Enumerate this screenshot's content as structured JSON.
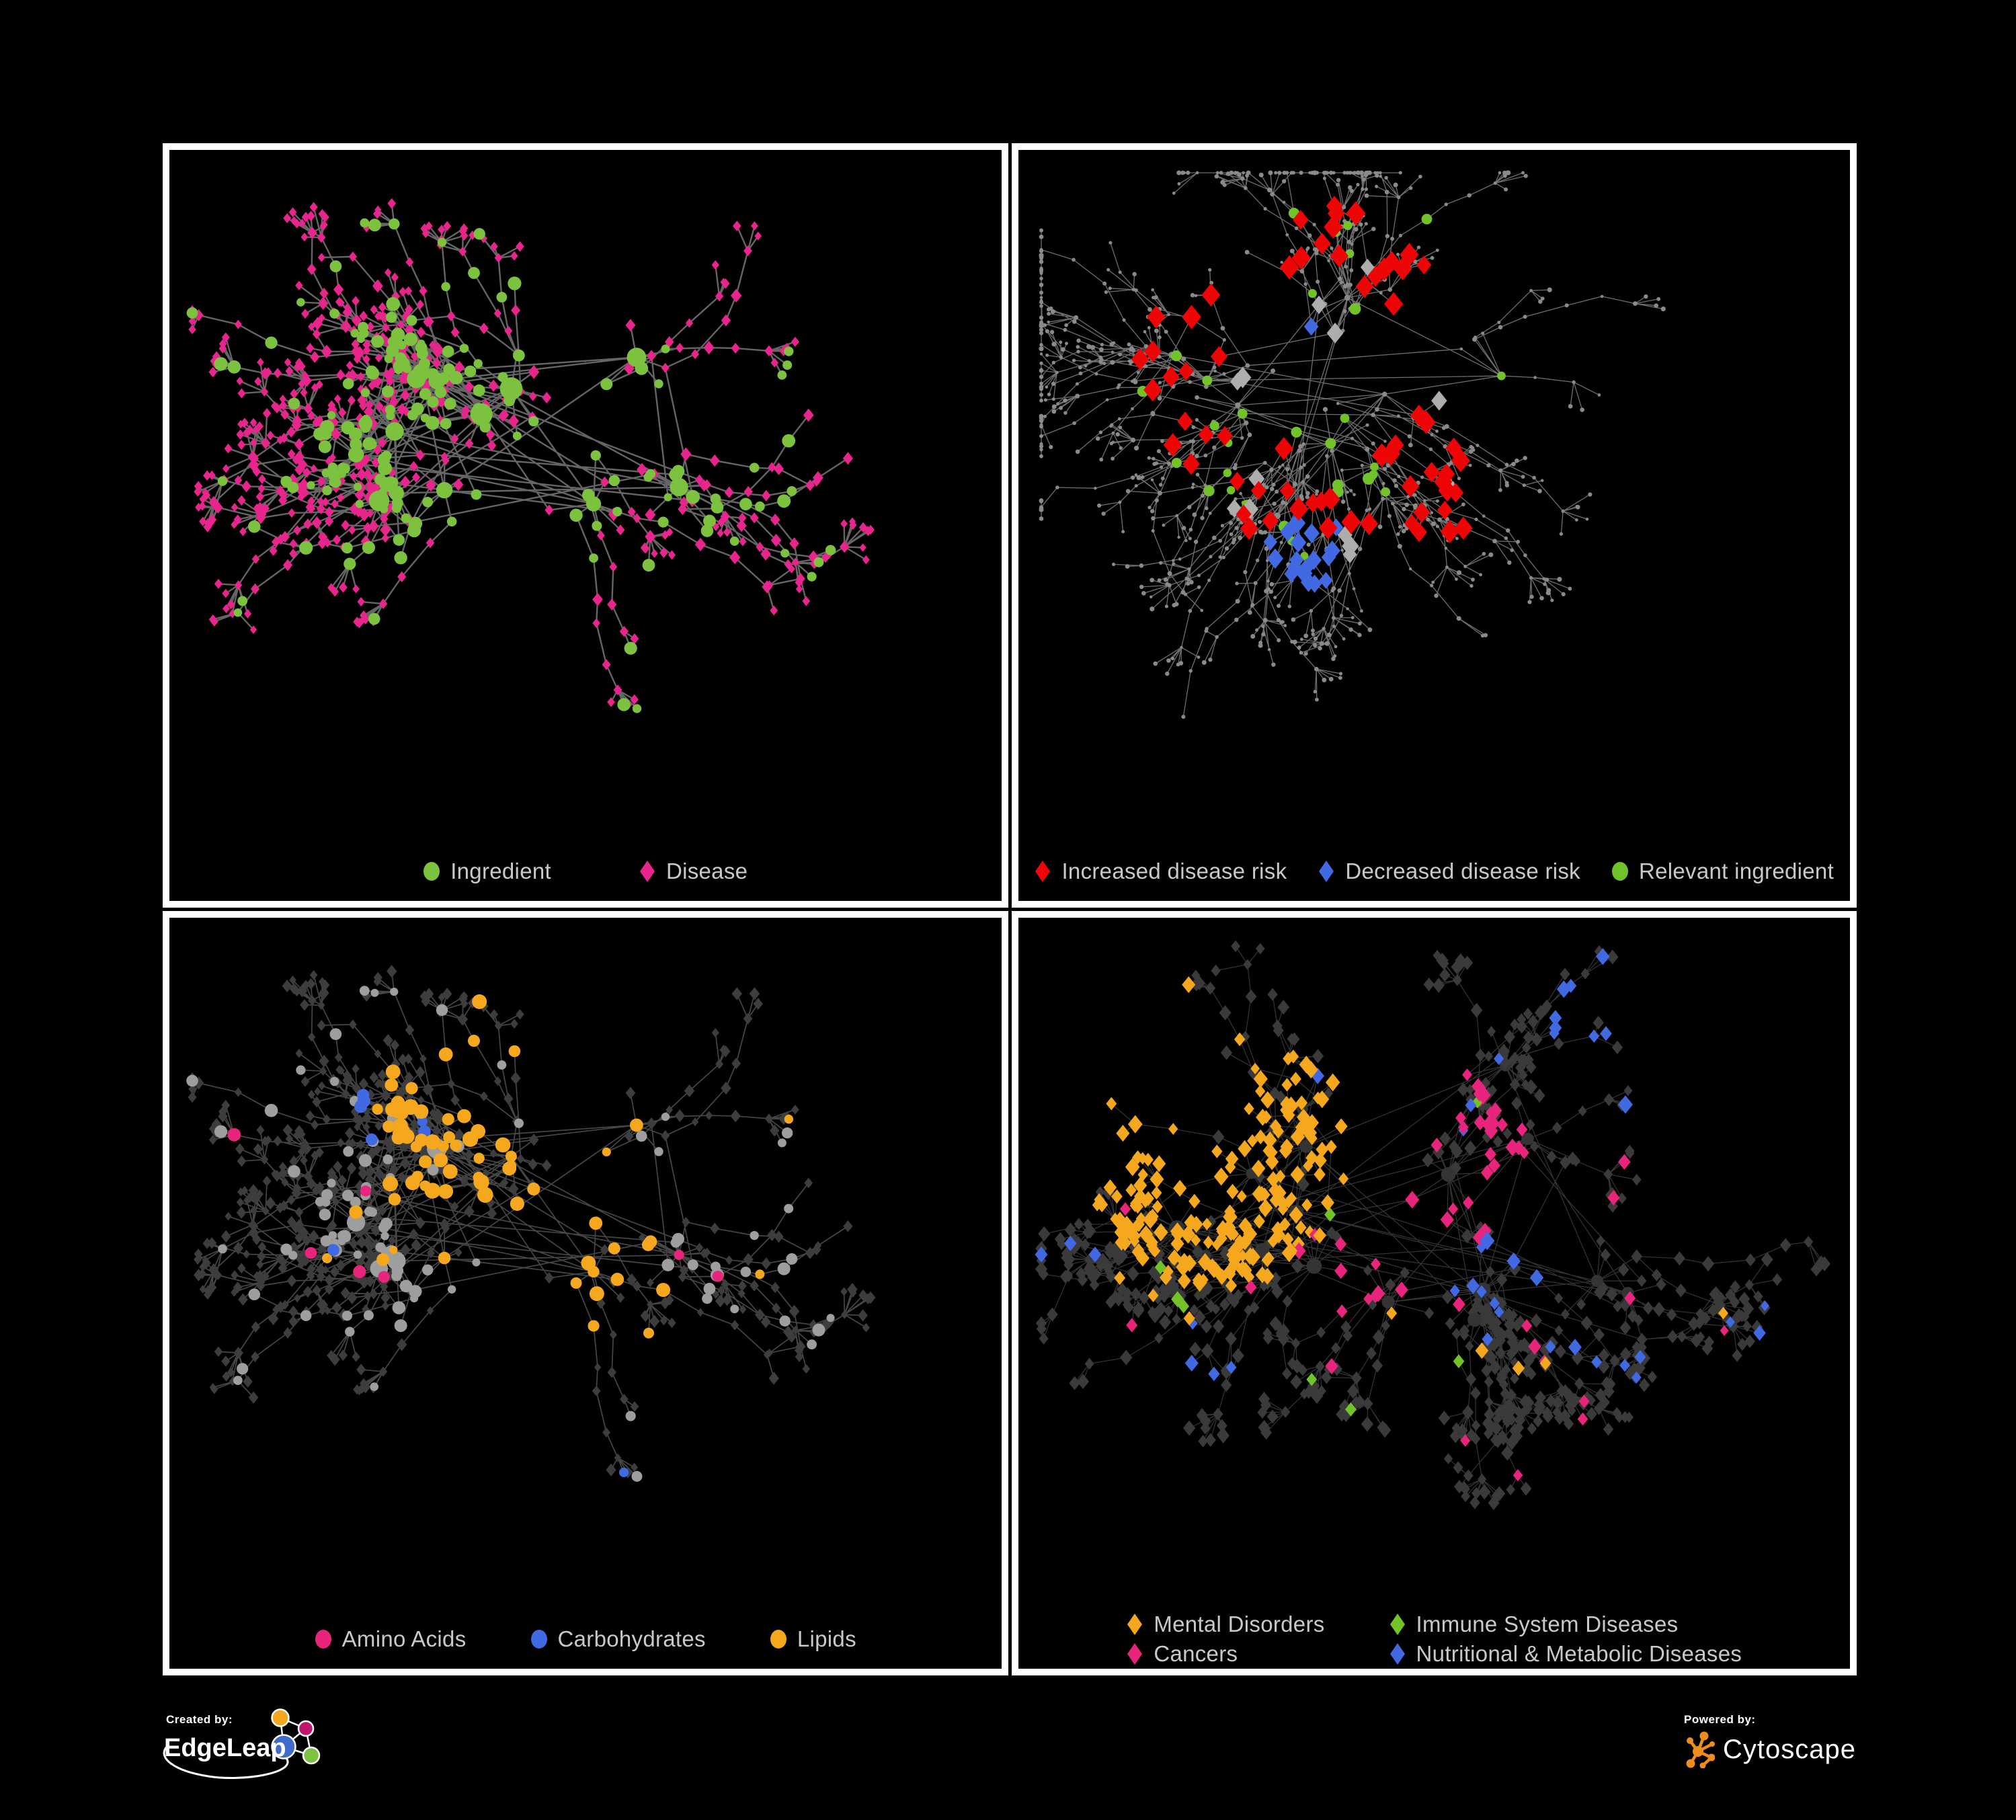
{
  "palette": {
    "background": "#000000",
    "panel_border": "#FFFFFF",
    "legend_text": "#C9C9C9",
    "ingredient_green": "#7CC23E",
    "disease_magenta": "#E8258C",
    "risk_red": "#EE0505",
    "link_blue": "#4169E1",
    "lipid_orange": "#F5A81E",
    "cancer_pink": "#E8247C",
    "immune_green": "#72C32A",
    "neutral_gray": "#8A8A8A",
    "dim_diamond": "#3A3A3A",
    "cytoscape_orange": "#F08C1C"
  },
  "panels": [
    {
      "id": "ingredient-disease",
      "legend_gap": 130,
      "legend_cols": 1,
      "legend": [
        {
          "shape": "circle",
          "color": "#7CC23E",
          "label": "Ingredient"
        },
        {
          "shape": "diamond",
          "color": "#E8258C",
          "label": "Disease"
        }
      ],
      "net": {
        "seed": 11,
        "core": [
          560,
          430,
          310,
          205
        ],
        "hubs": 13,
        "hub_links": 10,
        "sats": [
          6,
          18
        ],
        "branches": 84,
        "chain": 5,
        "fan": 8,
        "fan_prob": 0.8,
        "cls_prob": {
          "sat": 0.42,
          "chain": 0.22,
          "leaf": 0.1
        },
        "edge": {
          "color": "#6E6E6E",
          "width": 2.4,
          "opacity": 0.92
        }
      },
      "rules": [
        {
          "cls": "a",
          "roles": [
            "hub"
          ],
          "shape": "circle",
          "color": "#7CC23E",
          "size": [
            11,
            17
          ],
          "z": 2
        },
        {
          "cls": "a",
          "shape": "circle",
          "color": "#7CC23E",
          "size": [
            6,
            10.5
          ],
          "z": 1
        },
        {
          "cls": "b",
          "roles": [
            "leaf"
          ],
          "shape": "diamond",
          "color": "#E8258C",
          "size": [
            5.5,
            7
          ]
        },
        {
          "cls": "b",
          "shape": "diamond",
          "color": "#E8258C",
          "size": [
            6,
            9
          ]
        }
      ]
    },
    {
      "id": "disease-risk",
      "legend_gap": 46,
      "legend_cols": 1,
      "legend": [
        {
          "shape": "diamond",
          "color": "#EE0505",
          "label": "Increased disease risk"
        },
        {
          "shape": "diamond",
          "color": "#4169E1",
          "label": "Decreased disease risk"
        },
        {
          "shape": "circle",
          "color": "#72C32A",
          "label": "Relevant ingredient"
        }
      ],
      "net": {
        "seed": 7,
        "core": [
          470,
          360,
          300,
          195
        ],
        "hubs": 10,
        "hub_links": 6,
        "sats": [
          4,
          12
        ],
        "branches": 118,
        "chain": 6,
        "fan": 8,
        "fan_prob": 0.75,
        "cls_prob": {
          "sat": 0.3,
          "chain": 0.18,
          "leaf": 0.06
        },
        "edge": {
          "color": "#7A7A7A",
          "width": 1.3,
          "opacity": 0.9
        }
      },
      "rules": [
        {
          "cls": "b",
          "regions": [
            [
              430,
              330,
              250
            ],
            [
              560,
              430,
              190
            ],
            [
              565,
              845,
              95
            ]
          ],
          "prob": 0.17,
          "shape": "diamond",
          "color": "#EE0505",
          "size": [
            12,
            16
          ],
          "z": 3
        },
        {
          "cls": "b",
          "regions": [
            [
              385,
              300,
              90
            ],
            [
              1150,
              300,
              55
            ],
            [
              430,
              600,
              60
            ]
          ],
          "prob": 0.5,
          "shape": "diamond",
          "color": "#4169E1",
          "size": [
            11,
            14
          ],
          "z": 3
        },
        {
          "cls": "b",
          "regions": [
            [
              470,
              390,
              240
            ]
          ],
          "prob": 0.06,
          "shape": "diamond",
          "color": "#ADADAD",
          "size": [
            11,
            14
          ],
          "z": 2
        },
        {
          "cls": "a",
          "regions": [
            [
              450,
              330,
              280
            ],
            [
              950,
              230,
              70
            ]
          ],
          "prob": 0.38,
          "shape": "circle",
          "color": "#72C32A",
          "size": [
            6,
            9
          ],
          "z": 2
        },
        {
          "roles": [
            "hub"
          ],
          "shape": "circle",
          "color": "#8A8A8A",
          "size": [
            3.5,
            5
          ]
        },
        {
          "shape": "circle",
          "color": "#8A8A8A",
          "size": [
            2.2,
            3.6
          ]
        }
      ]
    },
    {
      "id": "nutrient-classes",
      "legend_gap": 95,
      "legend_cols": 1,
      "legend": [
        {
          "shape": "circle",
          "color": "#E8247C",
          "label": "Amino Acids"
        },
        {
          "shape": "circle",
          "color": "#4169E1",
          "label": "Carbohydrates"
        },
        {
          "shape": "circle",
          "color": "#F5A81E",
          "label": "Lipids"
        }
      ],
      "net": {
        "seed": 11,
        "core": [
          560,
          430,
          310,
          205
        ],
        "hubs": 13,
        "hub_links": 10,
        "sats": [
          6,
          18
        ],
        "branches": 84,
        "chain": 5,
        "fan": 8,
        "fan_prob": 0.8,
        "cls_prob": {
          "sat": 0.42,
          "chain": 0.22,
          "leaf": 0.1
        },
        "edge": {
          "color": "#8B8B8B",
          "width": 1.7,
          "opacity": 0.5
        }
      },
      "rules": [
        {
          "cls": "a",
          "regions": [
            [
              480,
              250,
              180
            ],
            [
              445,
              420,
              125
            ],
            [
              640,
              555,
              105
            ]
          ],
          "prob": 0.78,
          "shape": "circle",
          "color": "#F5A81E",
          "size": [
            8,
            12
          ],
          "z": 3
        },
        {
          "cls": "a",
          "regions": [
            [
              340,
              245,
              95
            ],
            [
              420,
              330,
              70
            ]
          ],
          "prob": 0.5,
          "shape": "circle",
          "color": "#4169E1",
          "size": [
            7,
            10
          ],
          "z": 3
        },
        {
          "cls": "a",
          "prob": 0.05,
          "shape": "circle",
          "color": "#E8247C",
          "size": [
            7,
            10
          ],
          "z": 3
        },
        {
          "cls": "a",
          "prob": 0.035,
          "shape": "circle",
          "color": "#4169E1",
          "size": [
            6,
            9
          ],
          "z": 3
        },
        {
          "cls": "a",
          "prob": 0.05,
          "shape": "circle",
          "color": "#F5A81E",
          "size": [
            6,
            10
          ],
          "z": 3
        },
        {
          "cls": "a",
          "roles": [
            "hub"
          ],
          "shape": "circle",
          "color": "#9E9E9E",
          "size": [
            10,
            15
          ],
          "z": 1
        },
        {
          "cls": "a",
          "shape": "circle",
          "color": "#9E9E9E",
          "size": [
            6,
            10
          ],
          "z": 1
        },
        {
          "cls": "b",
          "shape": "diamond",
          "color": "#3D3D3D",
          "size": [
            5.5,
            8.5
          ]
        }
      ]
    },
    {
      "id": "disease-categories",
      "legend_gap": 95,
      "legend_cols": 2,
      "legend": [
        {
          "shape": "diamond",
          "color": "#F5A81E",
          "label": "Mental Disorders"
        },
        {
          "shape": "diamond",
          "color": "#72C32A",
          "label": "Immune System Diseases"
        },
        {
          "shape": "diamond",
          "color": "#E8247C",
          "label": "Cancers"
        },
        {
          "shape": "diamond",
          "color": "#4169E1",
          "label": "Nutritional & Metabolic Diseases"
        }
      ],
      "net": {
        "seed": 21,
        "core": [
          600,
          430,
          390,
          235
        ],
        "hubs": 17,
        "hub_links": 14,
        "sats": [
          8,
          20
        ],
        "branches": 88,
        "chain": 5,
        "fan": 9,
        "fan_prob": 0.8,
        "cls_prob": {
          "sat": 0,
          "chain": 0,
          "leaf": 0
        },
        "edge": {
          "color": "#9A9A9A",
          "width": 1.2,
          "opacity": 0.34
        }
      },
      "rules": [
        {
          "cls": "b",
          "regions": [
            [
              300,
              350,
              200
            ]
          ],
          "prob": 0.88,
          "shape": "diamond",
          "color": "#F5A81E",
          "size": [
            8,
            12
          ],
          "z": 2
        },
        {
          "cls": "b",
          "regions": [
            [
              610,
              350,
              150
            ],
            [
              530,
              480,
              120
            ],
            [
              1185,
              295,
              85
            ]
          ],
          "prob": 0.55,
          "shape": "diamond",
          "color": "#E8247C",
          "size": [
            8,
            12
          ],
          "z": 2
        },
        {
          "cls": "b",
          "regions": [
            [
              705,
              460,
              115
            ],
            [
              1055,
              260,
              160
            ],
            [
              890,
              175,
              120
            ]
          ],
          "prob": 0.45,
          "shape": "diamond",
          "color": "#4169E1",
          "size": [
            8,
            12
          ],
          "z": 2
        },
        {
          "cls": "b",
          "prob": 0.055,
          "shape": "diamond",
          "color": "#4169E1",
          "size": [
            7,
            11
          ],
          "z": 2
        },
        {
          "cls": "b",
          "prob": 0.02,
          "shape": "diamond",
          "color": "#E8247C",
          "size": [
            7,
            11
          ],
          "z": 2
        },
        {
          "cls": "b",
          "prob": 0.02,
          "shape": "diamond",
          "color": "#F5A81E",
          "size": [
            7,
            11
          ],
          "z": 2
        },
        {
          "cls": "b",
          "prob": 0.012,
          "shape": "diamond",
          "color": "#72C32A",
          "size": [
            8,
            11
          ],
          "z": 2
        },
        {
          "roles": [
            "hub"
          ],
          "shape": "circle",
          "color": "#343434",
          "size": [
            8,
            12
          ]
        },
        {
          "shape": "diamond",
          "color": "#3A3A3A",
          "size": [
            7,
            10
          ]
        }
      ]
    }
  ],
  "footer": {
    "created_by": {
      "label": "Created by:",
      "brand": "EdgeLeap"
    },
    "powered_by": {
      "label": "Powered by:",
      "brand": "Cytoscape"
    }
  }
}
